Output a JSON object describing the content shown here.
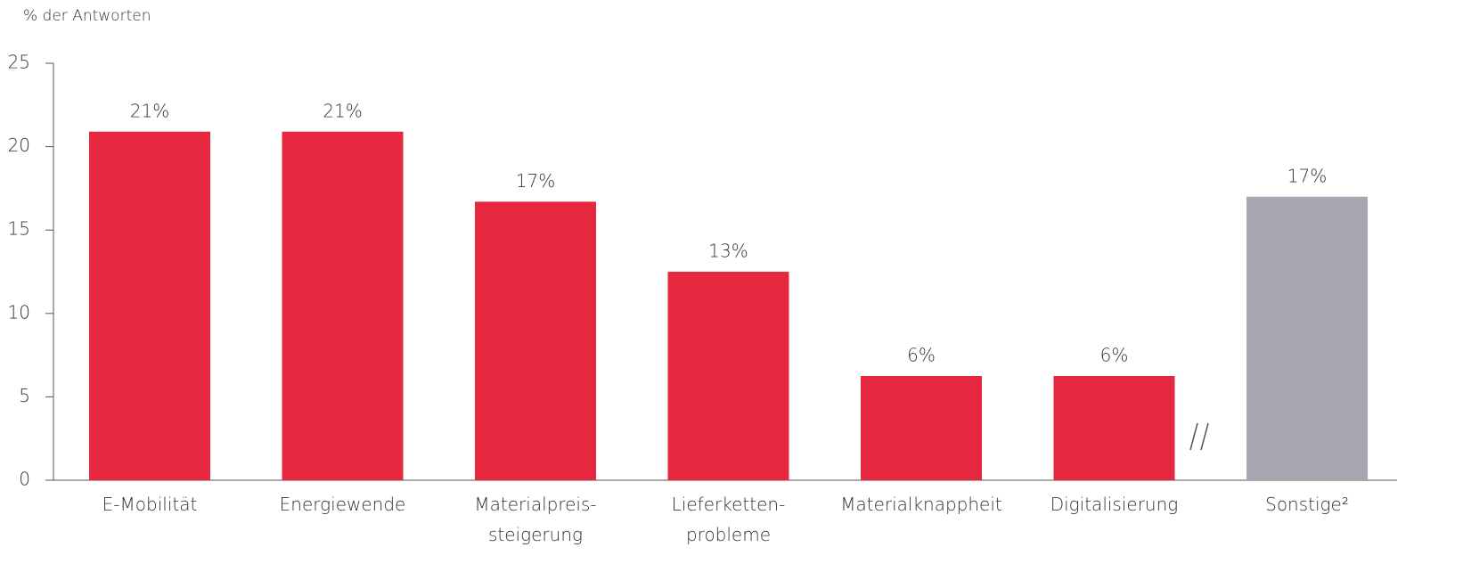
{
  "chart_data": {
    "type": "bar",
    "y_axis_label": "% der Antworten",
    "categories": [
      "E-Mobilität",
      "Energiewende",
      "Materialpreis-\nsteigerung",
      "Lieferketten-\nprobleme",
      "Materialknappheit",
      "Digitalisierung",
      "Sonstige²"
    ],
    "values": [
      20.9,
      20.9,
      16.7,
      12.5,
      6.25,
      6.25,
      17.0
    ],
    "value_labels": [
      "21%",
      "21%",
      "17%",
      "13%",
      "6%",
      "6%",
      "17%"
    ],
    "colors": [
      "#e52840",
      "#e52840",
      "#e52840",
      "#e52840",
      "#e52840",
      "#e52840",
      "#aaa6b1"
    ],
    "ylim": [
      0,
      25
    ],
    "yticks": [
      0,
      5,
      10,
      15,
      20,
      25
    ],
    "grid": false
  }
}
